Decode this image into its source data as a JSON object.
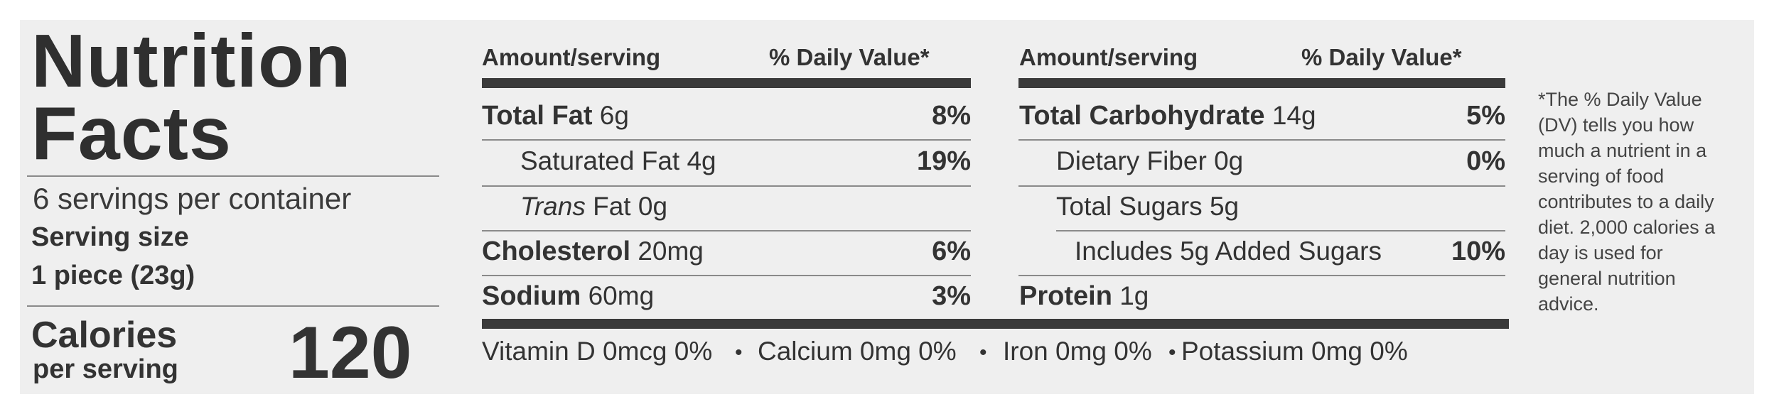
{
  "label": {
    "title_line1": "Nutrition",
    "title_line2": "Facts",
    "servings": "6 servings per container",
    "serving_size_label": "Serving size",
    "serving_size_value": "1 piece (23g)",
    "calories_label": "Calories",
    "calories_sublabel": "per serving",
    "calories_value": "120"
  },
  "left_table": {
    "header_amount": "Amount/serving",
    "header_dv": "% Daily Value*",
    "rows": [
      {
        "name": "Total Fat",
        "amount": "6g",
        "dv": "8%"
      },
      {
        "name": "Saturated Fat",
        "amount": "4g",
        "dv": "19%"
      },
      {
        "name": "Trans",
        "amount": "Fat 0g",
        "dv": ""
      },
      {
        "name": "Cholesterol",
        "amount": "20mg",
        "dv": "6%"
      },
      {
        "name": "Sodium",
        "amount": "60mg",
        "dv": "3%"
      }
    ]
  },
  "right_table": {
    "header_amount": "Amount/serving",
    "header_dv": "% Daily Value*",
    "rows": [
      {
        "name": "Total Carbohydrate",
        "amount": "14g",
        "dv": "5%"
      },
      {
        "name": "Dietary Fiber",
        "amount": "0g",
        "dv": "0%"
      },
      {
        "name": "Total Sugars",
        "amount": "5g",
        "dv": ""
      },
      {
        "name": "Includes 5g Added Sugars",
        "amount": "",
        "dv": "10%"
      },
      {
        "name": "Protein",
        "amount": "1g",
        "dv": ""
      }
    ]
  },
  "vitamins": {
    "vitamin_d": "Vitamin D 0mcg 0%",
    "calcium": "Calcium 0mg 0%",
    "iron": "Iron 0mg 0%",
    "potassium": "Potassium 0mg 0%",
    "separator": "•"
  },
  "footnote": "*The % Daily Value (DV) tells you how much a nutrient in a serving of food contributes to a daily diet. 2,000 calories a day is used for general nutrition advice."
}
